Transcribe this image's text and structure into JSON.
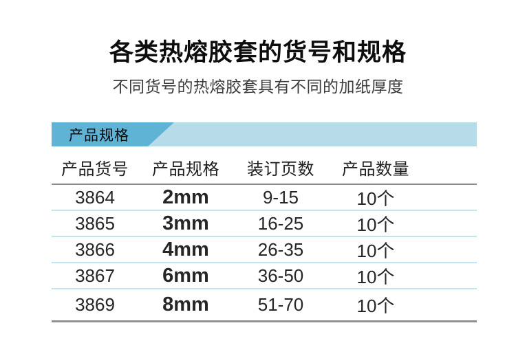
{
  "page": {
    "title": "各类热熔胶套的货号和规格",
    "subtitle": "不同货号的热熔胶套具有不同的加纸厚度"
  },
  "section": {
    "banner_label": "产品规格",
    "colors": {
      "banner_dark": "#5fb4d5",
      "banner_light": "#b7dbe9",
      "header_divider": "#8c8c8c",
      "row_divider": "#c2e4f2",
      "bottom_divider": "#919191"
    }
  },
  "table": {
    "columns": [
      "产品货号",
      "产品规格",
      "装订页数",
      "产品数量"
    ],
    "rows": [
      [
        "3864",
        "2mm",
        "9-15",
        "10个"
      ],
      [
        "3865",
        "3mm",
        "16-25",
        "10个"
      ],
      [
        "3866",
        "4mm",
        "26-35",
        "10个"
      ],
      [
        "3867",
        "6mm",
        "36-50",
        "10个"
      ],
      [
        "3869",
        "8mm",
        "51-70",
        "10个"
      ]
    ]
  }
}
